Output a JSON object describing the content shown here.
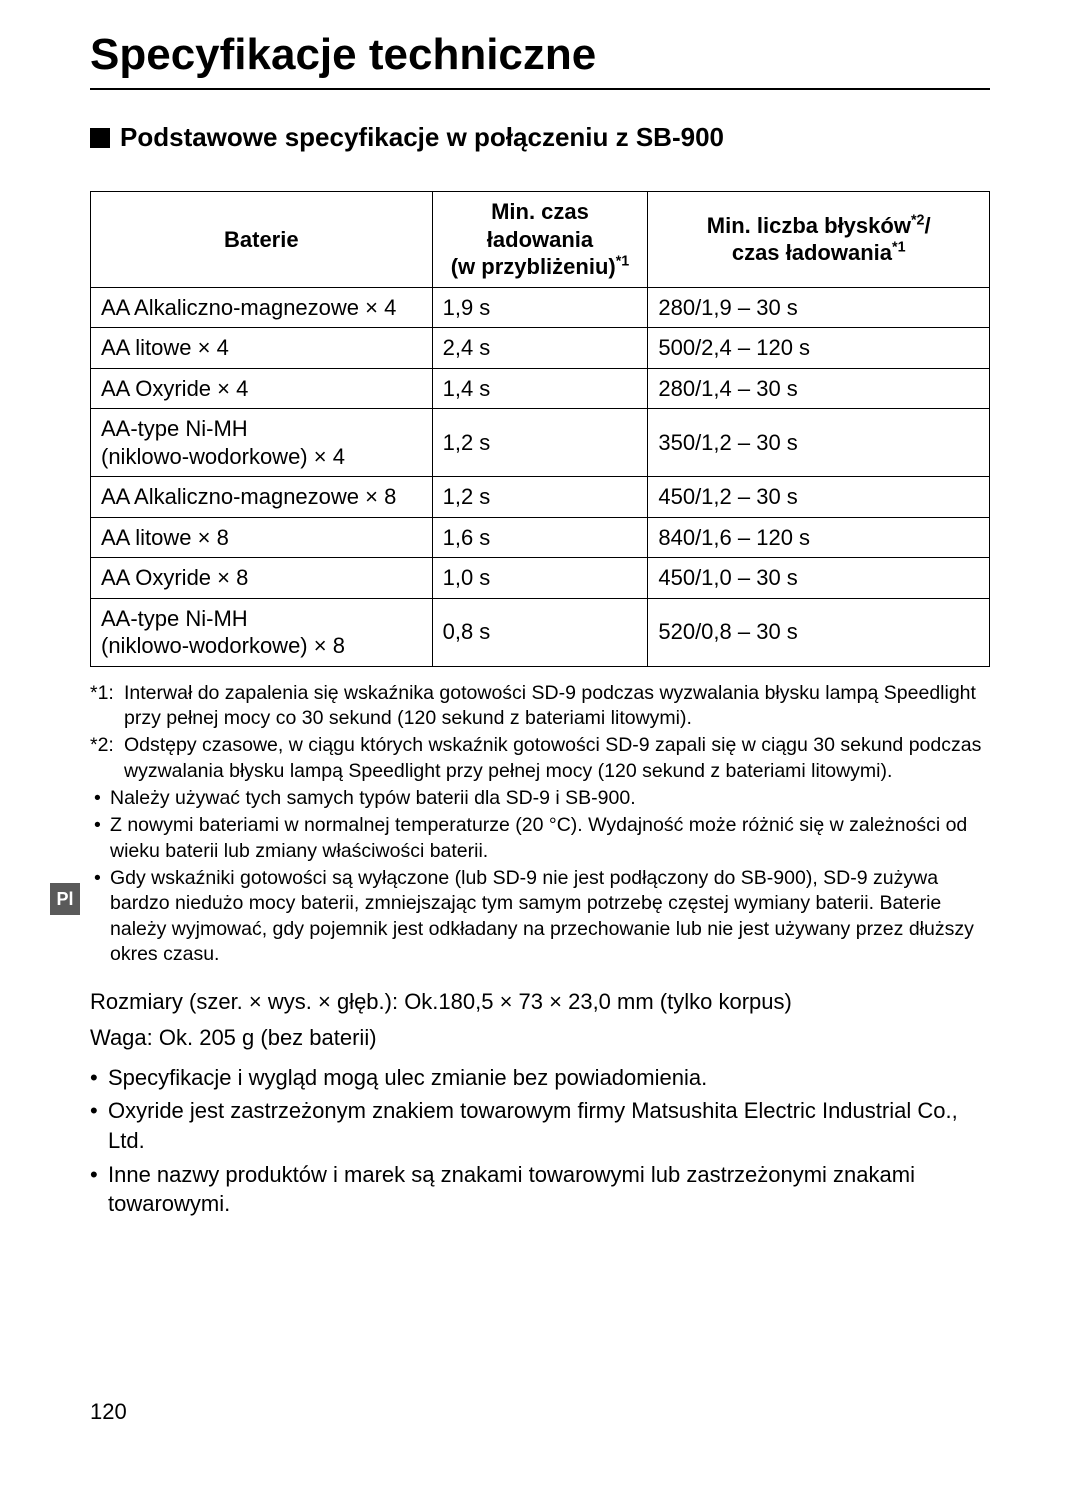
{
  "title": "Specyfikacje techniczne",
  "subheading": "Podstawowe specyfikacje w połączeniu z SB-900",
  "table": {
    "headers": {
      "c1": "Baterie",
      "c2_l1": "Min. czas ładowania",
      "c2_l2": "(w przybliżeniu)",
      "c2_sup": "*1",
      "c3_l1": "Min. liczba błysków",
      "c3_sup1": "*2",
      "c3_slash": "/",
      "c3_l2": "czas ładowania",
      "c3_sup2": "*1"
    },
    "rows": [
      {
        "c1": "AA Alkaliczno-magnezowe × 4",
        "c2": "1,9 s",
        "c3": "280/1,9 – 30 s"
      },
      {
        "c1": "AA litowe × 4",
        "c2": "2,4 s",
        "c3": "500/2,4 – 120 s"
      },
      {
        "c1": "AA Oxyride × 4",
        "c2": "1,4 s",
        "c3": "280/1,4 – 30 s"
      },
      {
        "c1_l1": "AA-type Ni-MH",
        "c1_l2": "(niklowo-wodorkowe) × 4",
        "c2": "1,2 s",
        "c3": "350/1,2 – 30 s"
      },
      {
        "c1": "AA Alkaliczno-magnezowe  × 8",
        "c2": "1,2 s",
        "c3": "450/1,2 – 30 s"
      },
      {
        "c1": "AA litowe × 8",
        "c2": "1,6 s",
        "c3": "840/1,6 – 120 s"
      },
      {
        "c1": "AA Oxyride × 8",
        "c2": "1,0 s",
        "c3": "450/1,0 – 30 s"
      },
      {
        "c1_l1": "AA-type Ni-MH",
        "c1_l2": "(niklowo-wodorkowe) × 8",
        "c2": "0,8 s",
        "c3": "520/0,8 – 30 s"
      }
    ]
  },
  "footnotes": {
    "f1_marker": "*1:",
    "f1": "Interwał do zapalenia się wskaźnika gotowości SD-9 podczas wyzwalania błysku lampą Speedlight przy pełnej mocy co 30 sekund (120 sekund z bateriami litowymi).",
    "f2_marker": "*2:",
    "f2": "Odstępy czasowe, w ciągu których wskaźnik gotowości SD-9 zapali się w ciągu 30 sekund podczas wyzwalania błysku lampą Speedlight przy pełnej mocy (120 sekund z bateriami litowymi).",
    "b1": "Należy używać tych samych typów baterii dla SD-9 i SB-900.",
    "b2": "Z nowymi bateriami w normalnej temperaturze (20 °C). Wydajność może różnić się w zależności od wieku baterii lub zmiany właściwości baterii.",
    "b3": "Gdy wskaźniki gotowości są wyłączone (lub SD-9 nie jest podłączony do SB-900), SD-9 zużywa bardzo niedużo mocy baterii, zmniejszając tym samym potrzebę częstej wymiany baterii. Baterie należy wyjmować, gdy pojemnik jest odkładany na przechowanie lub nie jest używany przez dłuższy okres czasu."
  },
  "lower": {
    "dims": "Rozmiary (szer. × wys. × głęb.): Ok.180,5 × 73 × 23,0 mm  (tylko korpus)",
    "weight": "Waga: Ok. 205 g (bez baterii)",
    "b1": "Specyfikacje i wygląd mogą ulec zmianie bez powiadomienia.",
    "b2": "Oxyride jest zastrzeżonym znakiem towarowym firmy Matsushita Electric Industrial Co., Ltd.",
    "b3": "Inne nazwy produktów i marek są znakami towarowymi lub zastrzeżonymi znakami towarowymi."
  },
  "side_tab": "Pl",
  "page_number": "120",
  "bullet_char": "•"
}
